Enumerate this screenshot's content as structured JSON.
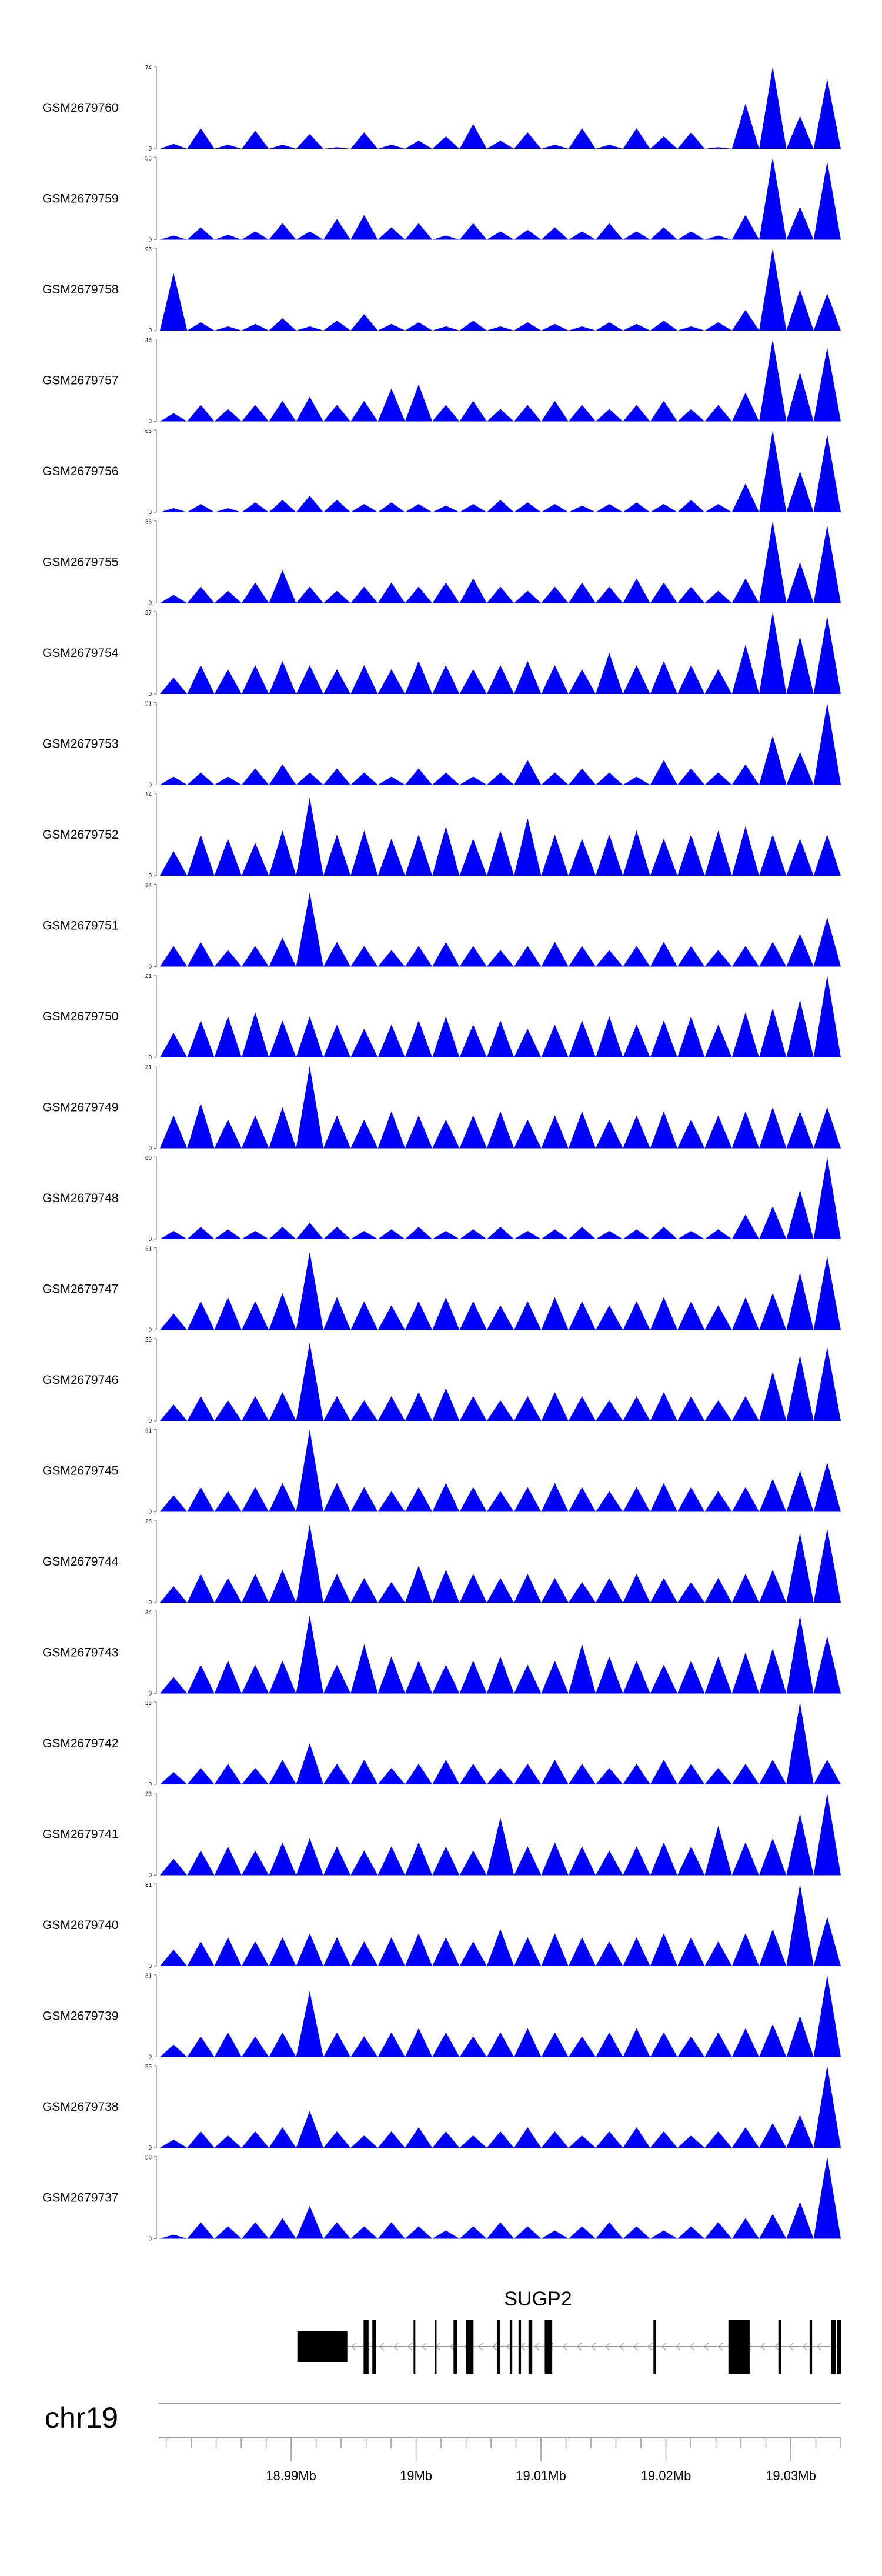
{
  "chart_data": {
    "type": "area",
    "title": "",
    "fill_color": "#0000ff",
    "tracks": [
      {
        "label": "GSM2679760",
        "ymax": "74",
        "ymin": "0",
        "v": [
          0.06,
          0.25,
          0.05,
          0.22,
          0.05,
          0.18,
          0.02,
          0.2,
          0.05,
          0.1,
          0.15,
          0.3,
          0.1,
          0.2,
          0.05,
          0.25,
          0.05,
          0.25,
          0.15,
          0.2,
          0.02,
          0.55,
          1.0,
          0.4,
          0.85
        ]
      },
      {
        "label": "GSM2679759",
        "ymax": "55",
        "ymin": "0",
        "v": [
          0.05,
          0.15,
          0.06,
          0.1,
          0.2,
          0.1,
          0.25,
          0.3,
          0.15,
          0.2,
          0.05,
          0.2,
          0.1,
          0.12,
          0.15,
          0.1,
          0.2,
          0.1,
          0.15,
          0.1,
          0.05,
          0.3,
          1.0,
          0.4,
          0.95
        ]
      },
      {
        "label": "GSM2679758",
        "ymax": "95",
        "ymin": "0",
        "v": [
          0.7,
          0.1,
          0.05,
          0.08,
          0.15,
          0.05,
          0.12,
          0.2,
          0.08,
          0.1,
          0.05,
          0.12,
          0.05,
          0.1,
          0.08,
          0.05,
          0.1,
          0.08,
          0.12,
          0.05,
          0.1,
          0.25,
          1.0,
          0.5,
          0.45
        ]
      },
      {
        "label": "GSM2679757",
        "ymax": "46",
        "ymin": "0",
        "v": [
          0.1,
          0.2,
          0.15,
          0.2,
          0.25,
          0.3,
          0.2,
          0.25,
          0.4,
          0.45,
          0.2,
          0.25,
          0.15,
          0.2,
          0.25,
          0.2,
          0.15,
          0.2,
          0.25,
          0.15,
          0.2,
          0.35,
          1.0,
          0.6,
          0.9
        ]
      },
      {
        "label": "GSM2679756",
        "ymax": "65",
        "ymin": "0",
        "v": [
          0.05,
          0.1,
          0.05,
          0.12,
          0.15,
          0.2,
          0.15,
          0.1,
          0.12,
          0.1,
          0.08,
          0.1,
          0.15,
          0.12,
          0.1,
          0.08,
          0.1,
          0.12,
          0.1,
          0.15,
          0.1,
          0.35,
          1.0,
          0.5,
          0.95
        ]
      },
      {
        "label": "GSM2679755",
        "ymax": "36",
        "ymin": "0",
        "v": [
          0.1,
          0.2,
          0.15,
          0.25,
          0.4,
          0.2,
          0.15,
          0.2,
          0.25,
          0.2,
          0.25,
          0.3,
          0.2,
          0.15,
          0.2,
          0.25,
          0.2,
          0.3,
          0.25,
          0.2,
          0.15,
          0.3,
          1.0,
          0.5,
          0.95
        ]
      },
      {
        "label": "GSM2679754",
        "ymax": "27",
        "ymin": "0",
        "v": [
          0.2,
          0.35,
          0.3,
          0.35,
          0.4,
          0.35,
          0.3,
          0.35,
          0.3,
          0.4,
          0.35,
          0.3,
          0.35,
          0.4,
          0.35,
          0.3,
          0.5,
          0.35,
          0.4,
          0.35,
          0.3,
          0.6,
          1.0,
          0.7,
          0.95
        ]
      },
      {
        "label": "GSM2679753",
        "ymax": "51",
        "ymin": "0",
        "v": [
          0.1,
          0.15,
          0.1,
          0.2,
          0.25,
          0.15,
          0.2,
          0.15,
          0.1,
          0.2,
          0.15,
          0.1,
          0.15,
          0.3,
          0.15,
          0.2,
          0.15,
          0.1,
          0.3,
          0.2,
          0.15,
          0.25,
          0.6,
          0.4,
          1.0
        ]
      },
      {
        "label": "GSM2679752",
        "ymax": "14",
        "ymin": "0",
        "v": [
          0.3,
          0.5,
          0.45,
          0.4,
          0.55,
          0.95,
          0.5,
          0.55,
          0.45,
          0.5,
          0.6,
          0.45,
          0.55,
          0.7,
          0.5,
          0.45,
          0.5,
          0.55,
          0.45,
          0.5,
          0.55,
          0.6,
          0.5,
          0.45,
          0.5
        ]
      },
      {
        "label": "GSM2679751",
        "ymax": "34",
        "ymin": "0",
        "v": [
          0.25,
          0.3,
          0.2,
          0.25,
          0.35,
          0.9,
          0.3,
          0.25,
          0.2,
          0.25,
          0.3,
          0.25,
          0.2,
          0.25,
          0.3,
          0.25,
          0.2,
          0.25,
          0.3,
          0.25,
          0.2,
          0.25,
          0.3,
          0.4,
          0.6
        ]
      },
      {
        "label": "GSM2679750",
        "ymax": "21",
        "ymin": "0",
        "v": [
          0.3,
          0.45,
          0.5,
          0.55,
          0.45,
          0.5,
          0.4,
          0.35,
          0.4,
          0.45,
          0.5,
          0.4,
          0.45,
          0.35,
          0.4,
          0.45,
          0.5,
          0.4,
          0.45,
          0.5,
          0.4,
          0.55,
          0.6,
          0.7,
          1.0
        ]
      },
      {
        "label": "GSM2679749",
        "ymax": "21",
        "ymin": "0",
        "v": [
          0.4,
          0.55,
          0.35,
          0.4,
          0.5,
          1.0,
          0.4,
          0.35,
          0.45,
          0.4,
          0.35,
          0.4,
          0.45,
          0.35,
          0.4,
          0.45,
          0.35,
          0.4,
          0.45,
          0.35,
          0.4,
          0.45,
          0.5,
          0.45,
          0.5
        ]
      },
      {
        "label": "GSM2679748",
        "ymax": "60",
        "ymin": "0",
        "v": [
          0.1,
          0.15,
          0.12,
          0.1,
          0.15,
          0.2,
          0.15,
          0.1,
          0.12,
          0.15,
          0.1,
          0.12,
          0.15,
          0.1,
          0.12,
          0.15,
          0.1,
          0.12,
          0.15,
          0.1,
          0.12,
          0.3,
          0.4,
          0.6,
          1.0
        ]
      },
      {
        "label": "GSM2679747",
        "ymax": "31",
        "ymin": "0",
        "v": [
          0.2,
          0.35,
          0.4,
          0.35,
          0.45,
          0.95,
          0.4,
          0.35,
          0.3,
          0.35,
          0.4,
          0.35,
          0.3,
          0.35,
          0.4,
          0.35,
          0.3,
          0.35,
          0.4,
          0.35,
          0.3,
          0.4,
          0.45,
          0.7,
          0.9
        ]
      },
      {
        "label": "GSM2679746",
        "ymax": "29",
        "ymin": "0",
        "v": [
          0.2,
          0.3,
          0.25,
          0.3,
          0.35,
          0.95,
          0.3,
          0.25,
          0.3,
          0.35,
          0.4,
          0.3,
          0.25,
          0.3,
          0.35,
          0.3,
          0.25,
          0.3,
          0.35,
          0.3,
          0.25,
          0.3,
          0.6,
          0.8,
          0.9
        ]
      },
      {
        "label": "GSM2679745",
        "ymax": "31",
        "ymin": "0",
        "v": [
          0.2,
          0.3,
          0.25,
          0.3,
          0.35,
          1.0,
          0.35,
          0.3,
          0.25,
          0.3,
          0.35,
          0.3,
          0.25,
          0.3,
          0.35,
          0.3,
          0.25,
          0.3,
          0.35,
          0.3,
          0.25,
          0.3,
          0.4,
          0.5,
          0.6
        ]
      },
      {
        "label": "GSM2679744",
        "ymax": "26",
        "ymin": "0",
        "v": [
          0.2,
          0.35,
          0.3,
          0.35,
          0.4,
          0.95,
          0.35,
          0.3,
          0.25,
          0.45,
          0.4,
          0.35,
          0.3,
          0.35,
          0.3,
          0.25,
          0.3,
          0.35,
          0.3,
          0.25,
          0.3,
          0.35,
          0.4,
          0.85,
          0.9
        ]
      },
      {
        "label": "GSM2679743",
        "ymax": "24",
        "ymin": "0",
        "v": [
          0.2,
          0.35,
          0.4,
          0.35,
          0.4,
          0.95,
          0.35,
          0.6,
          0.45,
          0.4,
          0.35,
          0.4,
          0.45,
          0.35,
          0.4,
          0.6,
          0.45,
          0.4,
          0.35,
          0.4,
          0.45,
          0.5,
          0.55,
          0.95,
          0.7
        ]
      },
      {
        "label": "GSM2679742",
        "ymax": "35",
        "ymin": "0",
        "v": [
          0.15,
          0.2,
          0.25,
          0.2,
          0.3,
          0.5,
          0.25,
          0.3,
          0.2,
          0.25,
          0.3,
          0.25,
          0.2,
          0.25,
          0.3,
          0.25,
          0.2,
          0.25,
          0.3,
          0.25,
          0.2,
          0.25,
          0.3,
          1.0,
          0.3
        ]
      },
      {
        "label": "GSM2679741",
        "ymax": "23",
        "ymin": "0",
        "v": [
          0.2,
          0.3,
          0.35,
          0.3,
          0.4,
          0.45,
          0.35,
          0.3,
          0.35,
          0.4,
          0.35,
          0.3,
          0.7,
          0.35,
          0.4,
          0.35,
          0.3,
          0.35,
          0.4,
          0.35,
          0.6,
          0.4,
          0.45,
          0.75,
          1.0
        ]
      },
      {
        "label": "GSM2679740",
        "ymax": "31",
        "ymin": "0",
        "v": [
          0.2,
          0.3,
          0.35,
          0.3,
          0.35,
          0.4,
          0.35,
          0.3,
          0.35,
          0.4,
          0.35,
          0.3,
          0.45,
          0.35,
          0.4,
          0.35,
          0.3,
          0.35,
          0.4,
          0.35,
          0.3,
          0.4,
          0.45,
          1.0,
          0.6
        ]
      },
      {
        "label": "GSM2679739",
        "ymax": "31",
        "ymin": "0",
        "v": [
          0.15,
          0.25,
          0.3,
          0.25,
          0.3,
          0.8,
          0.3,
          0.25,
          0.3,
          0.35,
          0.3,
          0.25,
          0.3,
          0.35,
          0.3,
          0.25,
          0.3,
          0.35,
          0.3,
          0.25,
          0.3,
          0.35,
          0.4,
          0.5,
          1.0
        ]
      },
      {
        "label": "GSM2679738",
        "ymax": "55",
        "ymin": "0",
        "v": [
          0.1,
          0.2,
          0.15,
          0.2,
          0.25,
          0.45,
          0.2,
          0.15,
          0.2,
          0.25,
          0.2,
          0.15,
          0.2,
          0.25,
          0.2,
          0.15,
          0.2,
          0.25,
          0.2,
          0.15,
          0.2,
          0.25,
          0.3,
          0.4,
          1.0
        ]
      },
      {
        "label": "GSM2679737",
        "ymax": "58",
        "ymin": "0",
        "v": [
          0.05,
          0.2,
          0.15,
          0.2,
          0.25,
          0.4,
          0.2,
          0.15,
          0.2,
          0.15,
          0.1,
          0.15,
          0.2,
          0.15,
          0.1,
          0.15,
          0.2,
          0.15,
          0.1,
          0.15,
          0.2,
          0.25,
          0.3,
          0.45,
          1.0
        ]
      }
    ],
    "gene": {
      "name": "SUGP2",
      "start_mb": 18.9905,
      "end_mb": 19.034,
      "strand": "-",
      "exons_mb": [
        [
          18.9905,
          18.9945
        ],
        [
          18.9958,
          18.9962
        ],
        [
          18.9965,
          18.9968
        ],
        [
          18.9998,
          18.9999
        ],
        [
          19.0015,
          19.0016
        ],
        [
          19.003,
          19.0033
        ],
        [
          19.004,
          19.0046
        ],
        [
          19.0065,
          19.0067
        ],
        [
          19.0075,
          19.0077
        ],
        [
          19.0082,
          19.0084
        ],
        [
          19.009,
          19.0093
        ],
        [
          19.0103,
          19.0109
        ],
        [
          19.019,
          19.0192
        ],
        [
          19.025,
          19.0267
        ],
        [
          19.029,
          19.0292
        ],
        [
          19.0315,
          19.0317
        ],
        [
          19.0332,
          19.0336
        ],
        [
          19.0337,
          19.034
        ]
      ]
    },
    "chromosome": "chr19",
    "x_axis": {
      "range_mb": [
        18.9795,
        19.034
      ],
      "ticks_mb": [
        18.99,
        19.0,
        19.01,
        19.02,
        19.03
      ],
      "tick_labels": [
        "18.99Mb",
        "19Mb",
        "19.01Mb",
        "19.02Mb",
        "19.03Mb"
      ],
      "minor_step_mb": 0.002
    }
  }
}
